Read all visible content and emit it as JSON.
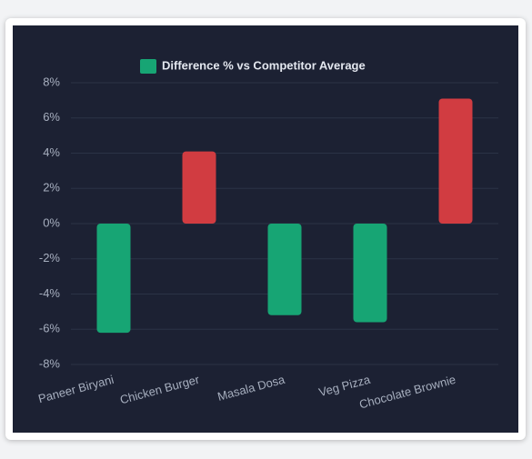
{
  "chart_data": {
    "type": "bar",
    "categories": [
      "Paneer Biryani",
      "Chicken Burger",
      "Masala Dosa",
      "Veg Pizza",
      "Chocolate Brownie"
    ],
    "series": [
      {
        "name": "Difference % vs Competitor Average",
        "color": "#17a574",
        "values": [
          -6.2,
          4.1,
          -5.2,
          -5.6,
          7.1
        ],
        "bar_colors": [
          "#17a574",
          "#d13c41",
          "#17a574",
          "#17a574",
          "#d13c41"
        ]
      }
    ],
    "ylim": [
      -8,
      8
    ],
    "yticks": [
      {
        "value": -8,
        "label": "-8%"
      },
      {
        "value": -6,
        "label": "-6%"
      },
      {
        "value": -4,
        "label": "-4%"
      },
      {
        "value": -2,
        "label": "-2%"
      },
      {
        "value": 0,
        "label": "0%"
      },
      {
        "value": 2,
        "label": "2%"
      },
      {
        "value": 4,
        "label": "4%"
      },
      {
        "value": 6,
        "label": "6%"
      },
      {
        "value": 8,
        "label": "8%"
      }
    ],
    "grid": true,
    "legend": "top"
  }
}
